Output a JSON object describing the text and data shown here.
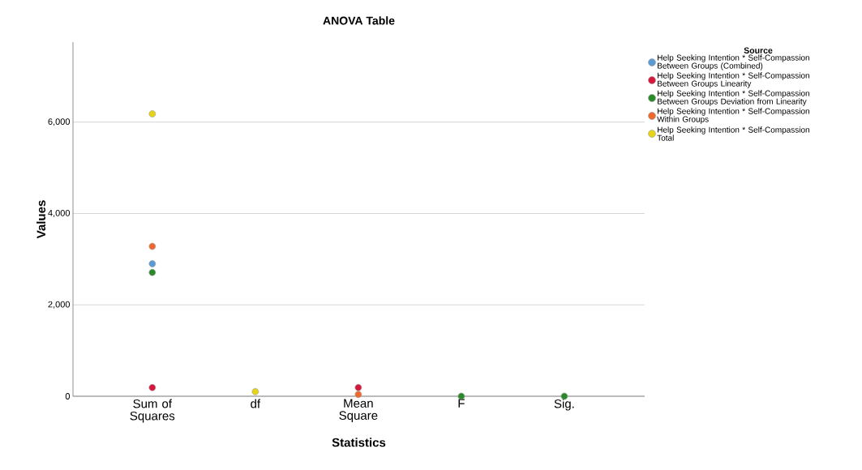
{
  "chart_data": {
    "type": "scatter",
    "title": "ANOVA Table",
    "xlabel": "Statistics",
    "ylabel": "Values",
    "legend_title": "Source",
    "categories": [
      "Sum of Squares",
      "df",
      "Mean Square",
      "F",
      "Sig."
    ],
    "series": [
      {
        "name": "Help Seeking Intention * Self-Compassion Between Groups (Combined)",
        "color": "#5b9bd5",
        "values": [
          2900,
          null,
          null,
          null,
          null
        ]
      },
      {
        "name": "Help Seeking Intention * Self-Compassion Between Groups Linearity",
        "color": "#d6173c",
        "values": [
          190,
          null,
          190,
          null,
          null
        ]
      },
      {
        "name": "Help Seeking Intention * Self-Compassion Between Groups Deviation from Linearity",
        "color": "#2a8a2a",
        "values": [
          2710,
          null,
          null,
          0,
          0
        ]
      },
      {
        "name": "Help Seeking Intention * Self-Compassion Within Groups",
        "color": "#ee6a2c",
        "values": [
          3280,
          null,
          40,
          null,
          null
        ]
      },
      {
        "name": "Help Seeking Intention * Self-Compassion Total",
        "color": "#e8d416",
        "values": [
          6180,
          100,
          null,
          null,
          null
        ]
      }
    ],
    "ylim": [
      0,
      7750
    ],
    "yticks": [
      {
        "value": 0,
        "label": "0"
      },
      {
        "value": 2000,
        "label": "2,000"
      },
      {
        "value": 4000,
        "label": "4,000"
      },
      {
        "value": 6000,
        "label": "6,000"
      }
    ],
    "grid": "y",
    "legend": "top right",
    "marker": "circle"
  }
}
